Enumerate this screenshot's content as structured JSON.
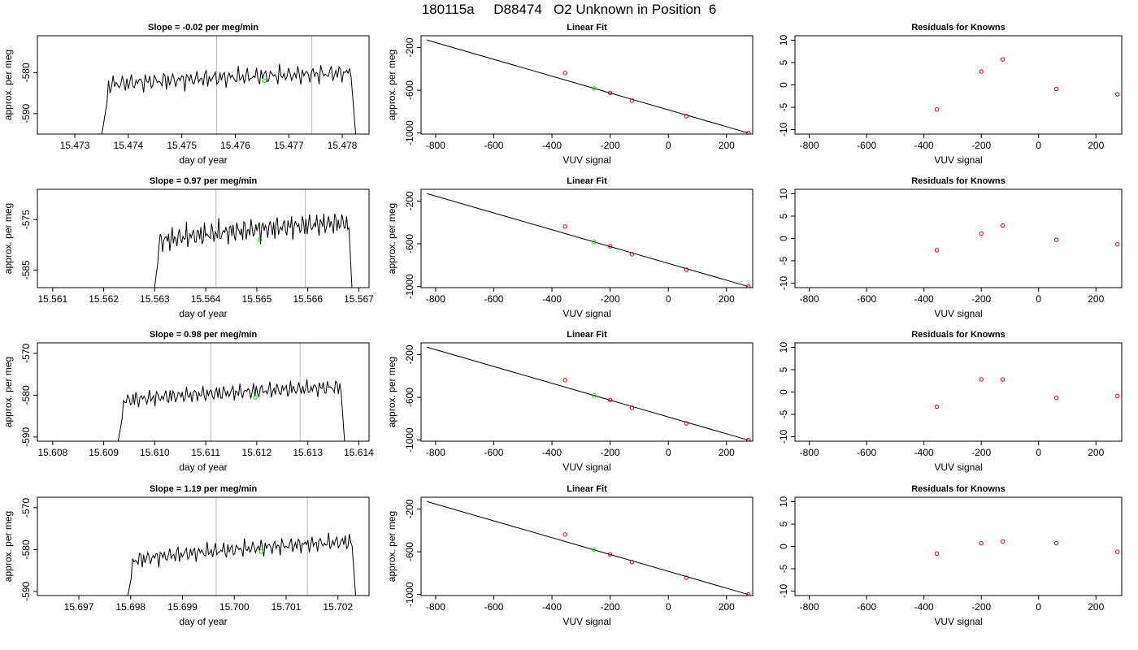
{
  "figure": {
    "title": "180115a     D88474   O2 Unknown in Position  6",
    "colors": {
      "trace": "#000000",
      "known_point": "#cc0000",
      "unknown_point": "#00dd00",
      "marker_line": "#bbbbbb",
      "fit_line": "#000000"
    }
  },
  "chart_data": [
    {
      "panel": "row1-timeseries",
      "type": "line",
      "title": "Slope =  -0.02  per meg/min",
      "xlabel": "day of year",
      "ylabel": "approx. per meg",
      "xlim": [
        15.4723,
        15.4785
      ],
      "ylim": [
        -595,
        -571
      ],
      "xticks": [
        15.473,
        15.474,
        15.475,
        15.476,
        15.477,
        15.478
      ],
      "xtick_labels": [
        "15.473",
        "15.474",
        "15.475",
        "15.476",
        "15.477",
        "15.478"
      ],
      "yticks": [
        -580,
        -590
      ],
      "ytick_labels": [
        "-580",
        "-590"
      ],
      "window_start": 15.47343,
      "window_end": 15.47828,
      "baseline": -583.5,
      "amplitude": 2.5,
      "drift": 3.5,
      "vlines": [
        15.47565,
        15.47743
      ],
      "unknown_point": {
        "x": 15.47655,
        "y": -582
      }
    },
    {
      "panel": "row1-fit",
      "type": "line",
      "title": "Linear Fit",
      "xlabel": "VUV signal",
      "ylabel": "approx. per meg",
      "xlim": [
        -850,
        290
      ],
      "ylim": [
        -1010,
        -90
      ],
      "xticks": [
        -800,
        -600,
        -400,
        -200,
        0,
        200
      ],
      "xtick_labels": [
        "-800",
        "-600",
        "-400",
        "-200",
        "0",
        "200"
      ],
      "yticks": [
        -200,
        -600,
        -1000
      ],
      "ytick_labels": [
        "-200",
        "-600",
        "-1000"
      ],
      "fit_line": {
        "x": [
          -830,
          275
        ],
        "y": [
          -130,
          -1000
        ]
      },
      "known_points": {
        "x": [
          -355,
          -200,
          -125,
          62,
          275
        ],
        "y": [
          -438,
          -624,
          -697,
          -843,
          -1000
        ]
      },
      "unknown_point": {
        "x": -255,
        "y": -583
      }
    },
    {
      "panel": "row1-residuals",
      "type": "scatter",
      "title": "Residuals for Knowns",
      "xlabel": "VUV signal",
      "xlim": [
        -850,
        290
      ],
      "ylim": [
        -11,
        11
      ],
      "xticks": [
        -800,
        -600,
        -400,
        -200,
        0,
        200
      ],
      "xtick_labels": [
        "-800",
        "-600",
        "-400",
        "-200",
        "0",
        "200"
      ],
      "yticks": [
        10,
        5,
        0,
        -5,
        -10
      ],
      "ytick_labels": [
        "10",
        "5",
        "0",
        "-5",
        "-10"
      ],
      "x": [
        -355,
        -200,
        -125,
        62,
        275
      ],
      "y": [
        -5.5,
        3.0,
        5.7,
        -0.9,
        -2.1
      ]
    },
    {
      "panel": "row2-timeseries",
      "type": "line",
      "title": "Slope =  0.97  per meg/min",
      "xlabel": "day of year",
      "ylabel": "approx. per meg",
      "xlim": [
        15.5607,
        15.5672
      ],
      "ylim": [
        -588.5,
        -569
      ],
      "xticks": [
        15.561,
        15.562,
        15.563,
        15.564,
        15.565,
        15.566,
        15.567
      ],
      "xtick_labels": [
        "15.561",
        "15.562",
        "15.563",
        "15.564",
        "15.565",
        "15.566",
        "15.567"
      ],
      "yticks": [
        -575,
        -585
      ],
      "ytick_labels": [
        "-575",
        "-585"
      ],
      "window_start": 15.56292,
      "window_end": 15.5669,
      "baseline": -580,
      "amplitude": 2.6,
      "drift": 4.5,
      "vlines": [
        15.5642,
        15.56595
      ],
      "unknown_point": {
        "x": 15.56506,
        "y": -579
      }
    },
    {
      "panel": "row2-fit",
      "type": "line",
      "title": "Linear Fit",
      "xlabel": "VUV signal",
      "ylabel": "approx. per meg",
      "xlim": [
        -850,
        290
      ],
      "ylim": [
        -1010,
        -90
      ],
      "xticks": [
        -800,
        -600,
        -400,
        -200,
        0,
        200
      ],
      "xtick_labels": [
        "-800",
        "-600",
        "-400",
        "-200",
        "0",
        "200"
      ],
      "yticks": [
        -200,
        -600,
        -1000
      ],
      "ytick_labels": [
        "-200",
        "-600",
        "-1000"
      ],
      "fit_line": {
        "x": [
          -830,
          275
        ],
        "y": [
          -130,
          -1000
        ]
      },
      "known_points": {
        "x": [
          -355,
          -200,
          -125,
          62,
          275
        ],
        "y": [
          -438,
          -624,
          -697,
          -843,
          -1000
        ]
      },
      "unknown_point": {
        "x": -255,
        "y": -583
      }
    },
    {
      "panel": "row2-residuals",
      "type": "scatter",
      "title": "Residuals for Knowns",
      "xlabel": "VUV signal",
      "xlim": [
        -850,
        290
      ],
      "ylim": [
        -11,
        11
      ],
      "xticks": [
        -800,
        -600,
        -400,
        -200,
        0,
        200
      ],
      "xtick_labels": [
        "-800",
        "-600",
        "-400",
        "-200",
        "0",
        "200"
      ],
      "yticks": [
        10,
        5,
        0,
        -5,
        -10
      ],
      "ytick_labels": [
        "10",
        "5",
        "0",
        "-5",
        "-10"
      ],
      "x": [
        -355,
        -200,
        -125,
        62,
        275
      ],
      "y": [
        -2.6,
        1.1,
        2.9,
        -0.3,
        -1.3
      ]
    },
    {
      "panel": "row3-timeseries",
      "type": "line",
      "title": "Slope =  0.98  per meg/min",
      "xlabel": "day of year",
      "ylabel": "approx. per meg",
      "xlim": [
        15.6077,
        15.6142
      ],
      "ylim": [
        -591,
        -567.5
      ],
      "xticks": [
        15.608,
        15.609,
        15.61,
        15.611,
        15.612,
        15.613,
        15.614
      ],
      "xtick_labels": [
        "15.608",
        "15.609",
        "15.610",
        "15.611",
        "15.612",
        "15.613",
        "15.614"
      ],
      "yticks": [
        -570,
        -580,
        -590
      ],
      "ytick_labels": [
        "-570",
        "-580",
        "-590"
      ],
      "window_start": 15.6092,
      "window_end": 15.61376,
      "baseline": -582,
      "amplitude": 2.2,
      "drift": 4.0,
      "vlines": [
        15.6111,
        15.61285
      ],
      "unknown_point": {
        "x": 15.61197,
        "y": -580.5
      }
    },
    {
      "panel": "row3-fit",
      "type": "line",
      "title": "Linear Fit",
      "xlabel": "VUV signal",
      "ylabel": "approx. per meg",
      "xlim": [
        -850,
        290
      ],
      "ylim": [
        -1010,
        -90
      ],
      "xticks": [
        -800,
        -600,
        -400,
        -200,
        0,
        200
      ],
      "xtick_labels": [
        "-800",
        "-600",
        "-400",
        "-200",
        "0",
        "200"
      ],
      "yticks": [
        -200,
        -600,
        -1000
      ],
      "ytick_labels": [
        "-200",
        "-600",
        "-1000"
      ],
      "fit_line": {
        "x": [
          -830,
          275
        ],
        "y": [
          -130,
          -1000
        ]
      },
      "known_points": {
        "x": [
          -355,
          -200,
          -125,
          62,
          275
        ],
        "y": [
          -438,
          -624,
          -697,
          -843,
          -1000
        ]
      },
      "unknown_point": {
        "x": -255,
        "y": -583
      }
    },
    {
      "panel": "row3-residuals",
      "type": "scatter",
      "title": "Residuals for Knowns",
      "xlabel": "VUV signal",
      "xlim": [
        -850,
        290
      ],
      "ylim": [
        -11,
        11
      ],
      "xticks": [
        -800,
        -600,
        -400,
        -200,
        0,
        200
      ],
      "xtick_labels": [
        "-800",
        "-600",
        "-400",
        "-200",
        "0",
        "200"
      ],
      "yticks": [
        10,
        5,
        0,
        -5,
        -10
      ],
      "ytick_labels": [
        "10",
        "5",
        "0",
        "-5",
        "-10"
      ],
      "x": [
        -355,
        -200,
        -125,
        62,
        275
      ],
      "y": [
        -3.3,
        2.8,
        2.8,
        -1.3,
        -0.9
      ]
    },
    {
      "panel": "row4-timeseries",
      "type": "line",
      "title": "Slope =  1.19  per meg/min",
      "xlabel": "day of year",
      "ylabel": "approx. per meg",
      "xlim": [
        15.6962,
        15.7026
      ],
      "ylim": [
        -591,
        -567.5
      ],
      "xticks": [
        15.697,
        15.698,
        15.699,
        15.7,
        15.701,
        15.702
      ],
      "xtick_labels": [
        "15.697",
        "15.698",
        "15.699",
        "15.700",
        "15.701",
        "15.702"
      ],
      "yticks": [
        -570,
        -580,
        -590
      ],
      "ytick_labels": [
        "-570",
        "-580",
        "-590"
      ],
      "window_start": 15.69785,
      "window_end": 15.70238,
      "baseline": -583.5,
      "amplitude": 2.2,
      "drift": 5.5,
      "vlines": [
        15.69965,
        15.70141
      ],
      "unknown_point": {
        "x": 15.70052,
        "y": -580.5
      }
    },
    {
      "panel": "row4-fit",
      "type": "line",
      "title": "Linear Fit",
      "xlabel": "VUV signal",
      "ylabel": "approx. per meg",
      "xlim": [
        -850,
        290
      ],
      "ylim": [
        -1010,
        -90
      ],
      "xticks": [
        -800,
        -600,
        -400,
        -200,
        0,
        200
      ],
      "xtick_labels": [
        "-800",
        "-600",
        "-400",
        "-200",
        "0",
        "200"
      ],
      "yticks": [
        -200,
        -600,
        -1000
      ],
      "ytick_labels": [
        "-200",
        "-600",
        "-1000"
      ],
      "fit_line": {
        "x": [
          -830,
          275
        ],
        "y": [
          -130,
          -1000
        ]
      },
      "known_points": {
        "x": [
          -355,
          -200,
          -125,
          62,
          275
        ],
        "y": [
          -438,
          -624,
          -697,
          -843,
          -1000
        ]
      },
      "unknown_point": {
        "x": -255,
        "y": -583
      }
    },
    {
      "panel": "row4-residuals",
      "type": "scatter",
      "title": "Residuals for Knowns",
      "xlabel": "VUV signal",
      "xlim": [
        -850,
        290
      ],
      "ylim": [
        -11,
        11
      ],
      "xticks": [
        -800,
        -600,
        -400,
        -200,
        0,
        200
      ],
      "xtick_labels": [
        "-800",
        "-600",
        "-400",
        "-200",
        "0",
        "200"
      ],
      "yticks": [
        10,
        5,
        0,
        -5,
        -10
      ],
      "ytick_labels": [
        "10",
        "5",
        "0",
        "-5",
        "-10"
      ],
      "x": [
        -355,
        -200,
        -125,
        62,
        275
      ],
      "y": [
        -1.6,
        0.7,
        1.1,
        0.7,
        -1.2
      ]
    }
  ]
}
